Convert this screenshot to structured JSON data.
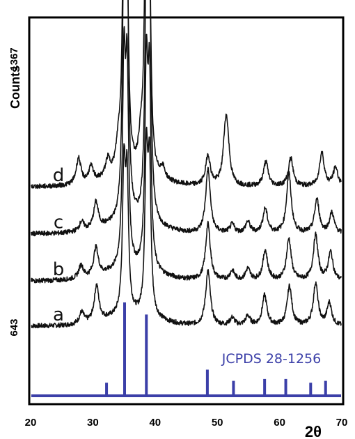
{
  "chart_data": {
    "type": "line",
    "xlabel": "2θ",
    "ylabel": "Counts",
    "xlim": [
      20,
      70
    ],
    "x_ticks": [
      "20",
      "30",
      "40",
      "50",
      "60",
      "70"
    ],
    "y_tick_labels": {
      "top": "1367",
      "bottom": "643"
    },
    "series": [
      {
        "name": "a",
        "baseline": 0,
        "peaks": [
          [
            28.2,
            12
          ],
          [
            30.6,
            38
          ],
          [
            35.0,
            150
          ],
          [
            35.5,
            135
          ],
          [
            38.6,
            165
          ],
          [
            39.1,
            150
          ],
          [
            48.5,
            58
          ],
          [
            52.4,
            8
          ],
          [
            54.9,
            10
          ],
          [
            57.6,
            32
          ],
          [
            61.6,
            42
          ],
          [
            65.8,
            45
          ],
          [
            68.0,
            24
          ]
        ]
      },
      {
        "name": "b",
        "baseline": 48,
        "peaks": [
          [
            28.1,
            14
          ],
          [
            30.5,
            30
          ],
          [
            35.0,
            210
          ],
          [
            35.5,
            195
          ],
          [
            38.6,
            205
          ],
          [
            39.1,
            190
          ],
          [
            48.5,
            60
          ],
          [
            52.4,
            10
          ],
          [
            54.9,
            12
          ],
          [
            57.7,
            32
          ],
          [
            61.5,
            44
          ],
          [
            65.8,
            48
          ],
          [
            68.2,
            30
          ]
        ]
      },
      {
        "name": "c",
        "baseline": 98,
        "peaks": [
          [
            28.2,
            10
          ],
          [
            30.5,
            28
          ],
          [
            35.0,
            270
          ],
          [
            35.5,
            250
          ],
          [
            38.6,
            255
          ],
          [
            39.1,
            238
          ],
          [
            48.5,
            68
          ],
          [
            52.4,
            9
          ],
          [
            54.9,
            12
          ],
          [
            57.7,
            26
          ],
          [
            61.5,
            64
          ],
          [
            66.0,
            36
          ],
          [
            68.4,
            22
          ]
        ]
      },
      {
        "name": "d",
        "baseline": 148,
        "peaks": [
          [
            27.7,
            28
          ],
          [
            29.7,
            16
          ],
          [
            32.4,
            18
          ],
          [
            34.1,
            26
          ],
          [
            35.0,
            290
          ],
          [
            35.5,
            185
          ],
          [
            37.7,
            30
          ],
          [
            38.5,
            255
          ],
          [
            39.1,
            210
          ],
          [
            41.2,
            12
          ],
          [
            48.5,
            32
          ],
          [
            51.3,
            45
          ],
          [
            51.6,
            38
          ],
          [
            57.8,
            26
          ],
          [
            61.8,
            30
          ],
          [
            66.8,
            36
          ],
          [
            69.0,
            20
          ]
        ]
      }
    ],
    "reference": {
      "label": "JCPDS 28-1256",
      "color": "#3b3fa8",
      "lines": [
        {
          "x": 32.2,
          "height": 0.14
        },
        {
          "x": 35.1,
          "height": 1.0
        },
        {
          "x": 38.6,
          "height": 0.87
        },
        {
          "x": 48.4,
          "height": 0.28
        },
        {
          "x": 52.6,
          "height": 0.16
        },
        {
          "x": 57.6,
          "height": 0.18
        },
        {
          "x": 61.0,
          "height": 0.18
        },
        {
          "x": 65.0,
          "height": 0.14
        },
        {
          "x": 67.4,
          "height": 0.16
        }
      ]
    },
    "grid": false,
    "legend": "none"
  }
}
